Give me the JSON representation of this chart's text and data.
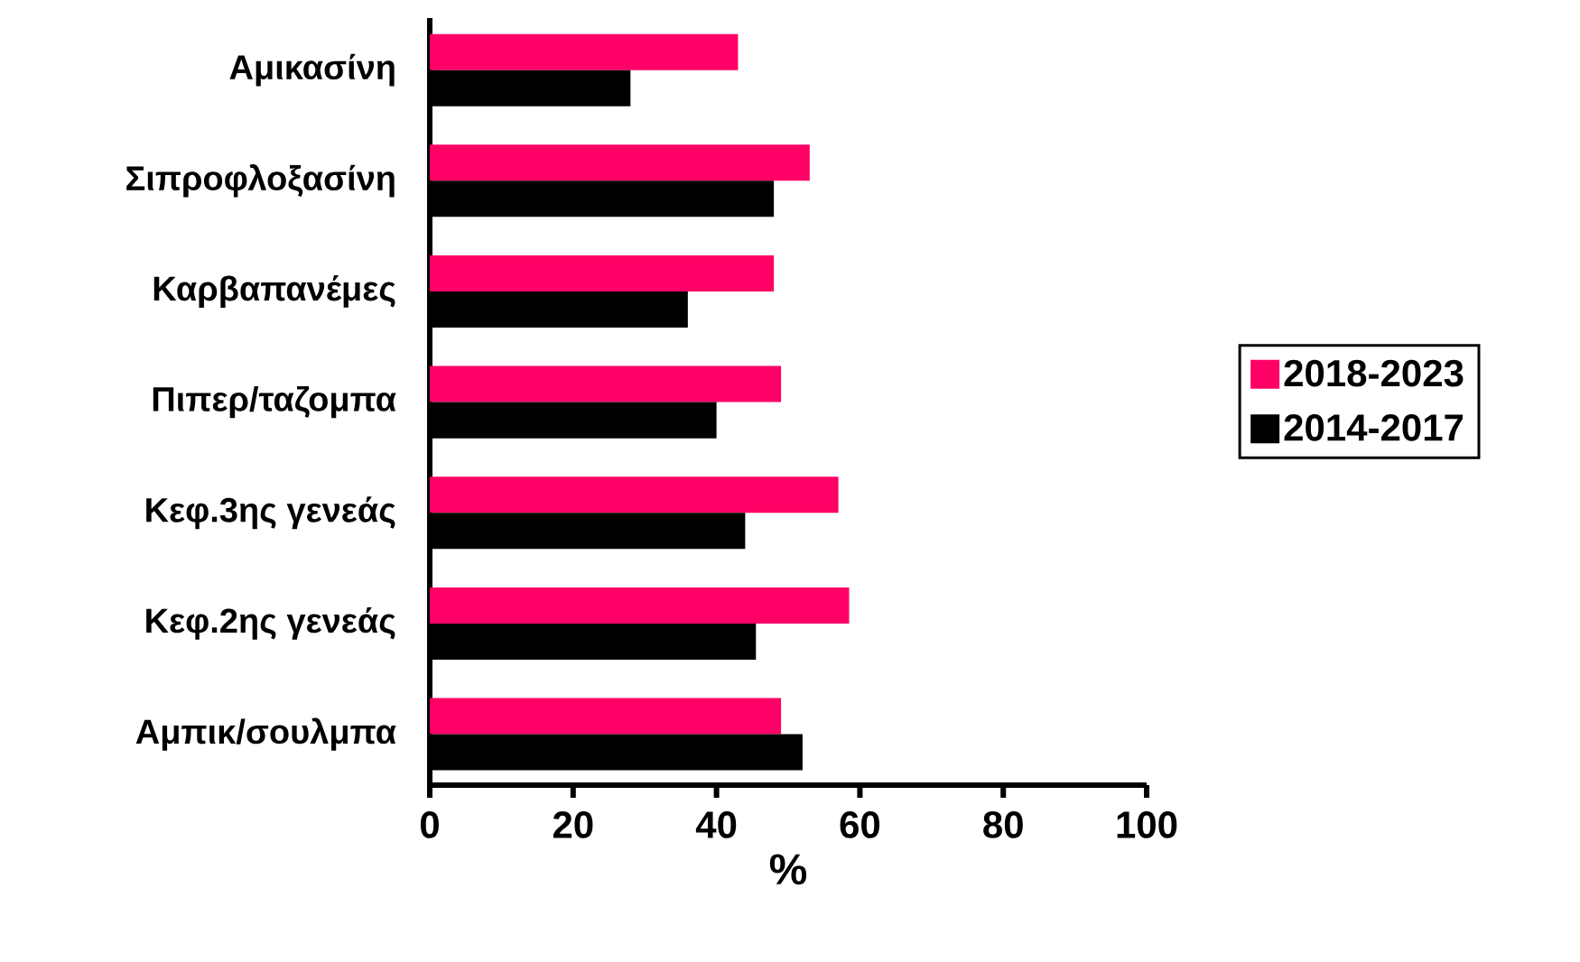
{
  "chart_data": {
    "type": "bar",
    "orientation": "horizontal",
    "xlabel": "%",
    "categories": [
      "Αμικασίνη",
      "Σιπροφλοξασίνη",
      "Καρβαπανέμες",
      "Πιπερ/ταζομπα",
      "Κεφ.3ης γενεάς",
      "Κεφ.2ης γενεάς",
      "Αμπικ/σουλμπα"
    ],
    "series": [
      {
        "name": "2018-2023",
        "color": "#ff0066",
        "values": [
          43,
          53,
          48,
          49,
          57,
          58.5,
          49
        ]
      },
      {
        "name": "2014-2017",
        "color": "#000000",
        "values": [
          28,
          48,
          36,
          40,
          44,
          45.5,
          52
        ]
      }
    ],
    "xlim": [
      0,
      100
    ],
    "xticks": [
      0,
      20,
      40,
      60,
      80,
      100
    ],
    "legend": "right"
  }
}
